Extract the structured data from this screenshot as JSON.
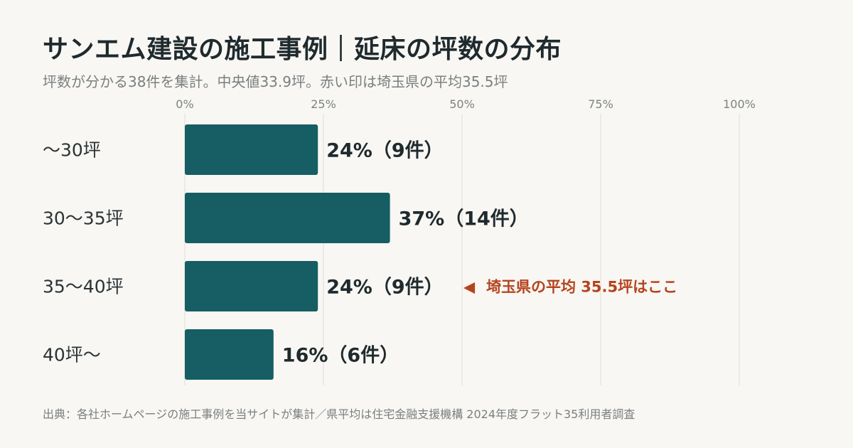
{
  "header": {
    "title": "サンエム建設の施工事例｜延床の坪数の分布",
    "subtitle": "坪数が分かる38件を集計。中央値33.9坪。赤い印は埼玉県の平均35.5坪"
  },
  "footer": {
    "source": "出典：各社ホームページの施工事例を当サイトが集計／県平均は住宅金融支援機構 2024年度フラット35利用者調査"
  },
  "chart_data": {
    "type": "bar",
    "orientation": "horizontal",
    "categories": [
      "〜30坪",
      "30〜35坪",
      "35〜40坪",
      "40坪〜"
    ],
    "values": [
      24,
      37,
      24,
      16
    ],
    "counts": [
      9,
      14,
      9,
      6
    ],
    "data_labels": [
      "24%（9件）",
      "37%（14件）",
      "24%（9件）",
      "16%（6件）"
    ],
    "xlim": [
      0,
      100
    ],
    "x_ticks": [
      0,
      25,
      50,
      75,
      100
    ],
    "x_tick_labels": [
      "0%",
      "25%",
      "50%",
      "75%",
      "100%"
    ],
    "grid": true,
    "bar_color": "#165e63",
    "annotation": {
      "category_index": 2,
      "text": "埼玉県の平均 35.5坪はここ",
      "marker": "◀",
      "color": "#b5441f"
    }
  }
}
